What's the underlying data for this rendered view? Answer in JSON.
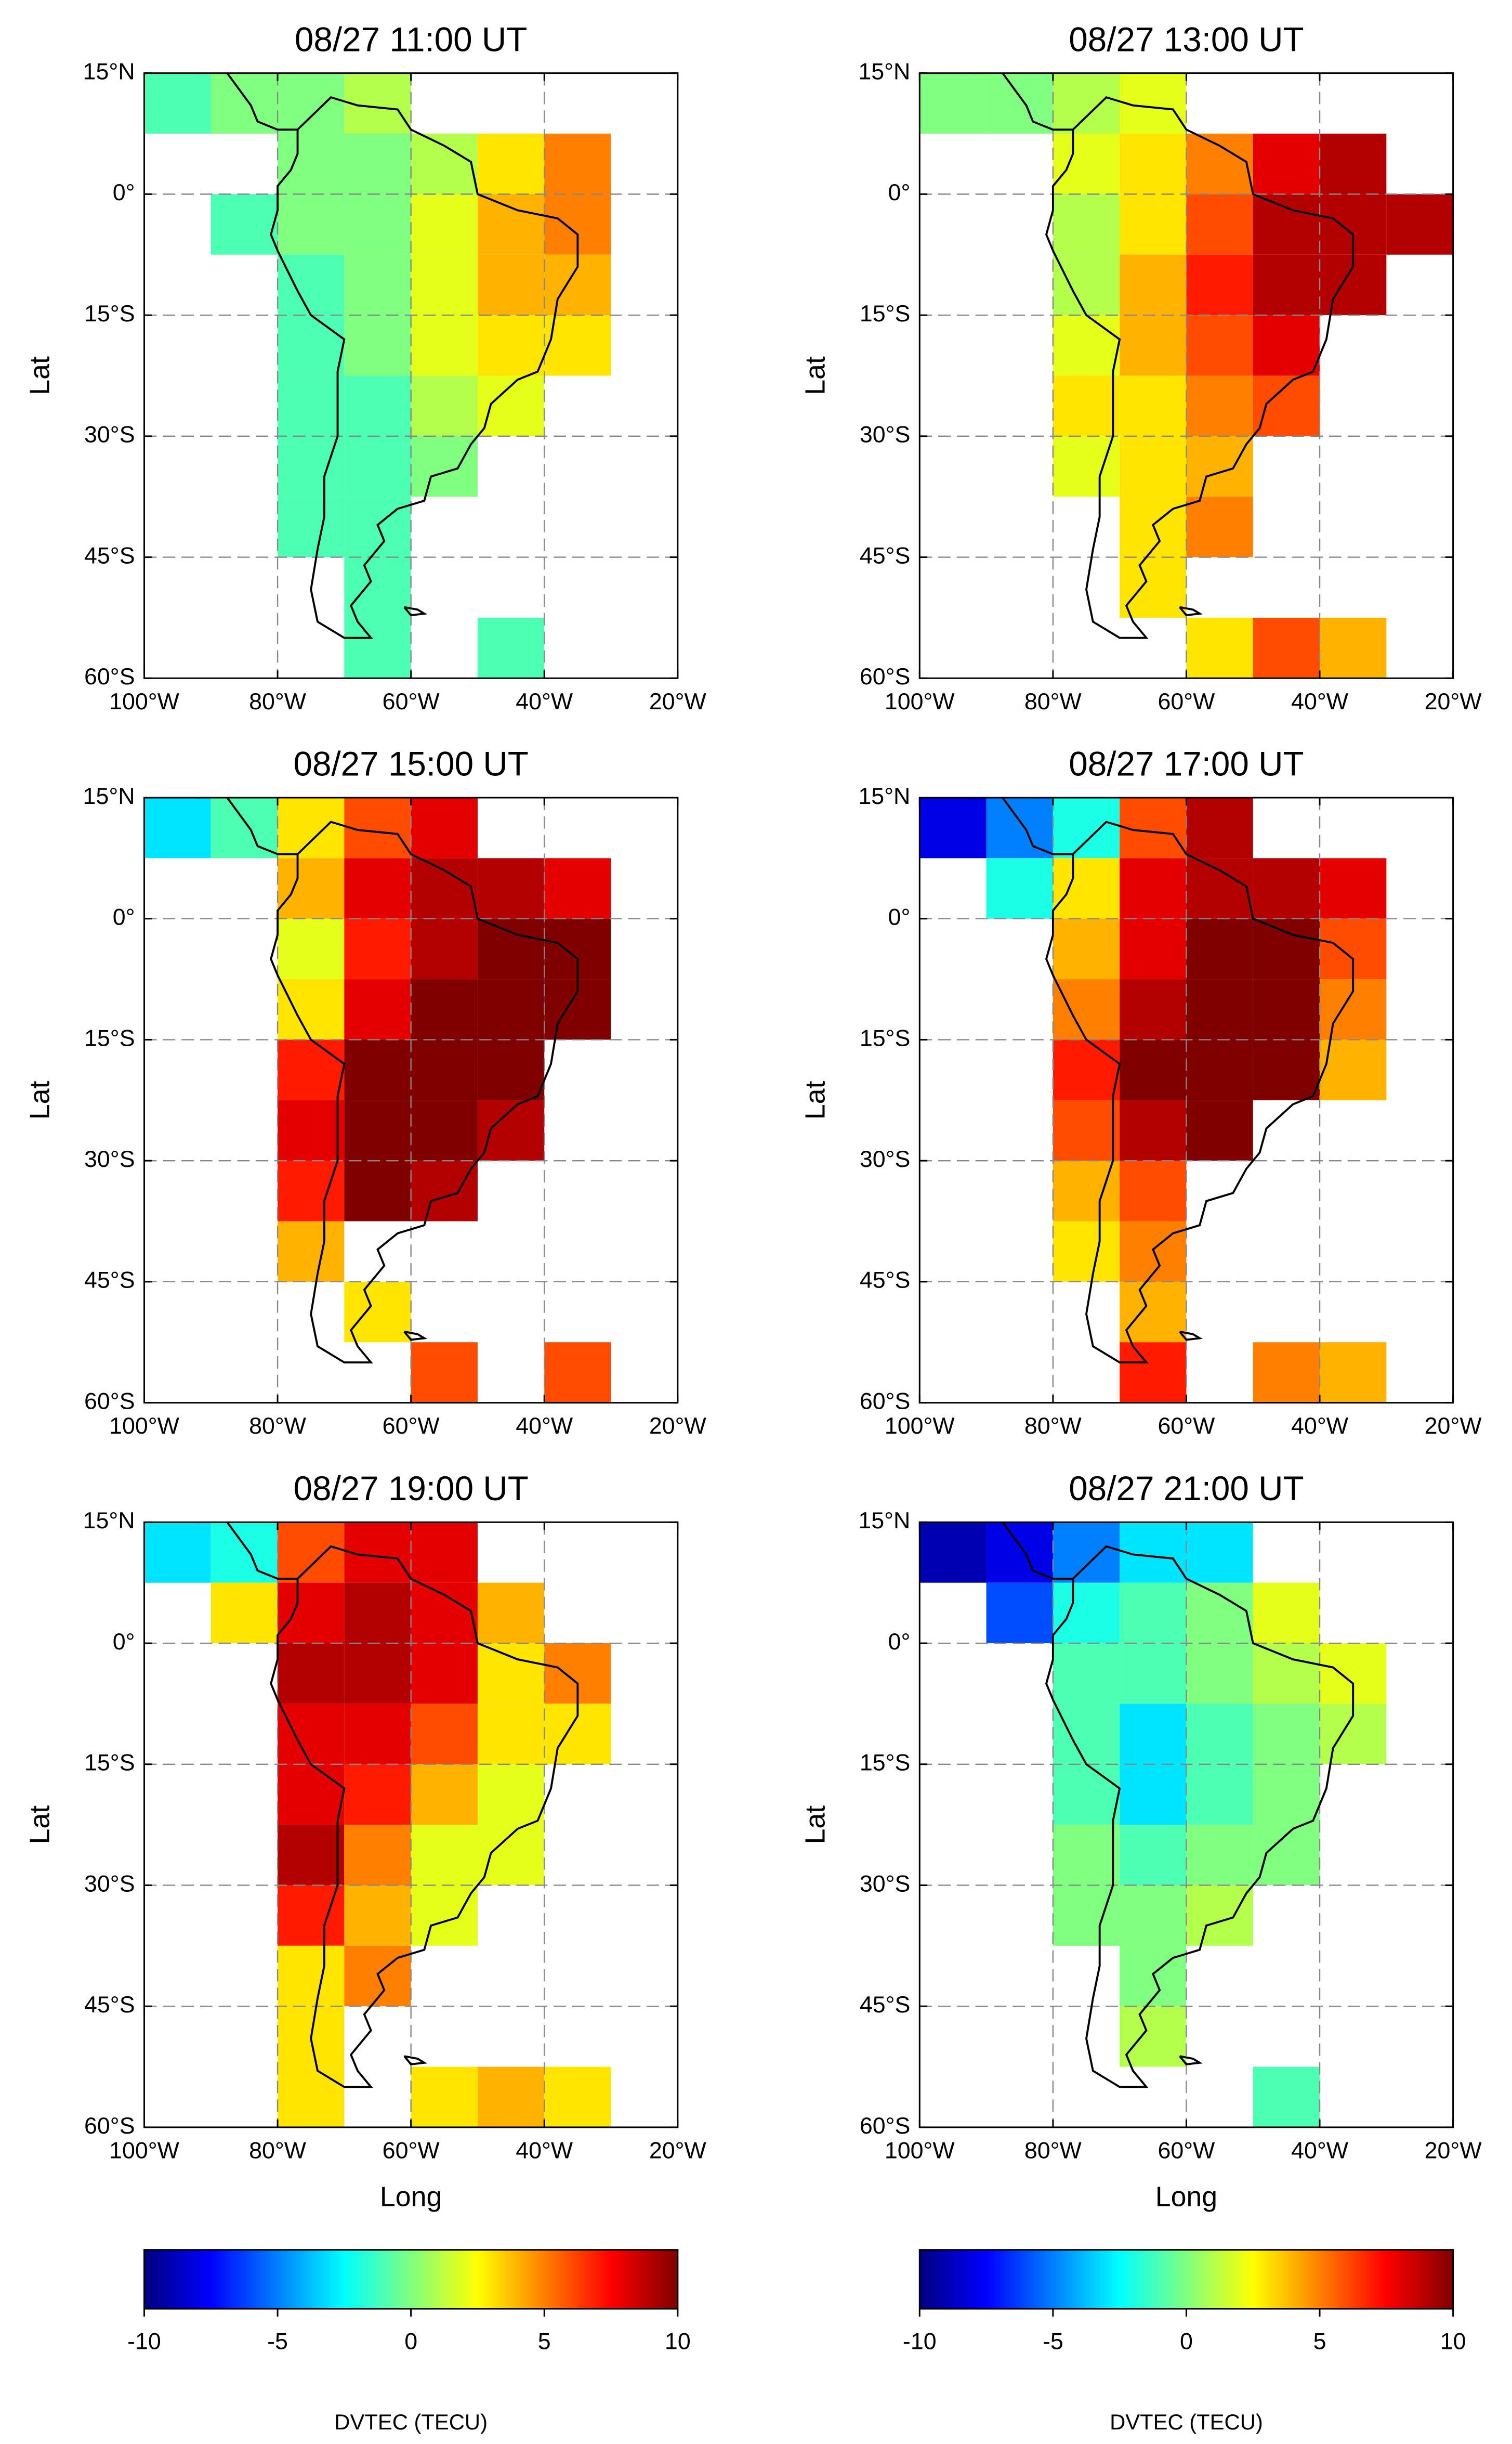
{
  "chart_data": [
    {
      "type": "heatmap",
      "title": "08/27 11:00 UT",
      "ylabel": "Lat",
      "xlim": [
        -100,
        -20
      ],
      "ylim": [
        -60,
        15
      ],
      "xticks": [
        {
          "value": -100,
          "label": "100°W"
        },
        {
          "value": -80,
          "label": "80°W"
        },
        {
          "value": -60,
          "label": "60°W"
        },
        {
          "value": -40,
          "label": "40°W"
        },
        {
          "value": -20,
          "label": "20°W"
        }
      ],
      "yticks": [
        {
          "value": 15,
          "label": "15°N"
        },
        {
          "value": 0,
          "label": "0°"
        },
        {
          "value": -15,
          "label": "15°S"
        },
        {
          "value": -30,
          "label": "30°S"
        },
        {
          "value": -45,
          "label": "45°S"
        },
        {
          "value": -60,
          "label": "60°S"
        }
      ],
      "xbins": [
        -100,
        -90,
        -80,
        -70,
        -60,
        -50,
        -40,
        -30,
        -20
      ],
      "ybins": [
        15,
        7.5,
        0,
        -7.5,
        -15,
        -22.5,
        -30,
        -37.5,
        -45,
        -52.5,
        -60
      ],
      "values": [
        [
          -1,
          0,
          0,
          1,
          null,
          null,
          null,
          null
        ],
        [
          null,
          null,
          0,
          0,
          1,
          3,
          5,
          null
        ],
        [
          null,
          -1,
          0,
          0,
          2,
          4,
          5,
          null
        ],
        [
          null,
          null,
          -1,
          0,
          2,
          4,
          4,
          null
        ],
        [
          null,
          null,
          -1,
          0,
          2,
          3,
          3,
          null
        ],
        [
          null,
          null,
          -1,
          -1,
          1,
          2,
          null,
          null
        ],
        [
          null,
          null,
          -1,
          -1,
          0,
          null,
          null,
          null
        ],
        [
          null,
          null,
          -1,
          -1,
          null,
          null,
          null,
          null
        ],
        [
          null,
          null,
          null,
          -1,
          null,
          null,
          null,
          null
        ],
        [
          null,
          null,
          null,
          -1,
          null,
          -1,
          null,
          null
        ]
      ],
      "grid": true
    },
    {
      "type": "heatmap",
      "title": "08/27 13:00 UT",
      "ylabel": "Lat",
      "xlim": [
        -100,
        -20
      ],
      "ylim": [
        -60,
        15
      ],
      "xticks": [
        {
          "value": -100,
          "label": "100°W"
        },
        {
          "value": -80,
          "label": "80°W"
        },
        {
          "value": -60,
          "label": "60°W"
        },
        {
          "value": -40,
          "label": "40°W"
        },
        {
          "value": -20,
          "label": "20°W"
        }
      ],
      "yticks": [
        {
          "value": 15,
          "label": "15°N"
        },
        {
          "value": 0,
          "label": "0°"
        },
        {
          "value": -15,
          "label": "15°S"
        },
        {
          "value": -30,
          "label": "30°S"
        },
        {
          "value": -45,
          "label": "45°S"
        },
        {
          "value": -60,
          "label": "60°S"
        }
      ],
      "xbins": [
        -100,
        -90,
        -80,
        -70,
        -60,
        -50,
        -40,
        -30,
        -20
      ],
      "ybins": [
        15,
        7.5,
        0,
        -7.5,
        -15,
        -22.5,
        -30,
        -37.5,
        -45,
        -52.5,
        -60
      ],
      "values": [
        [
          0,
          0,
          1,
          2,
          null,
          null,
          null,
          null
        ],
        [
          null,
          null,
          2,
          3,
          5,
          8,
          9,
          null
        ],
        [
          null,
          null,
          1,
          3,
          6,
          9,
          9,
          9
        ],
        [
          null,
          null,
          1,
          4,
          7,
          9,
          9,
          null
        ],
        [
          null,
          null,
          2,
          4,
          6,
          8,
          null,
          null
        ],
        [
          null,
          null,
          3,
          3,
          5,
          6,
          null,
          null
        ],
        [
          null,
          null,
          2,
          3,
          4,
          null,
          null,
          null
        ],
        [
          null,
          null,
          null,
          3,
          5,
          null,
          null,
          null
        ],
        [
          null,
          null,
          null,
          3,
          null,
          null,
          null,
          null
        ],
        [
          null,
          null,
          null,
          null,
          3,
          6,
          4,
          null
        ]
      ],
      "grid": true
    },
    {
      "type": "heatmap",
      "title": "08/27 15:00 UT",
      "ylabel": "Lat",
      "xlim": [
        -100,
        -20
      ],
      "ylim": [
        -60,
        15
      ],
      "xticks": [
        {
          "value": -100,
          "label": "100°W"
        },
        {
          "value": -80,
          "label": "80°W"
        },
        {
          "value": -60,
          "label": "60°W"
        },
        {
          "value": -40,
          "label": "40°W"
        },
        {
          "value": -20,
          "label": "20°W"
        }
      ],
      "yticks": [
        {
          "value": 15,
          "label": "15°N"
        },
        {
          "value": 0,
          "label": "0°"
        },
        {
          "value": -15,
          "label": "15°S"
        },
        {
          "value": -30,
          "label": "30°S"
        },
        {
          "value": -45,
          "label": "45°S"
        },
        {
          "value": -60,
          "label": "60°S"
        }
      ],
      "xbins": [
        -100,
        -90,
        -80,
        -70,
        -60,
        -50,
        -40,
        -30,
        -20
      ],
      "ybins": [
        15,
        7.5,
        0,
        -7.5,
        -15,
        -22.5,
        -30,
        -37.5,
        -45,
        -52.5,
        -60
      ],
      "values": [
        [
          -3,
          -1,
          3,
          6,
          8,
          null,
          null,
          null
        ],
        [
          null,
          null,
          4,
          8,
          9,
          9,
          8,
          null
        ],
        [
          null,
          null,
          2,
          7,
          9,
          10,
          10,
          null
        ],
        [
          null,
          null,
          3,
          8,
          10,
          10,
          10,
          null
        ],
        [
          null,
          null,
          7,
          10,
          10,
          10,
          null,
          null
        ],
        [
          null,
          null,
          8,
          10,
          10,
          9,
          null,
          null
        ],
        [
          null,
          null,
          7,
          10,
          9,
          null,
          null,
          null
        ],
        [
          null,
          null,
          4,
          null,
          null,
          null,
          null,
          null
        ],
        [
          null,
          null,
          null,
          3,
          null,
          null,
          null,
          null
        ],
        [
          null,
          null,
          null,
          null,
          6,
          null,
          6,
          null
        ]
      ],
      "grid": true
    },
    {
      "type": "heatmap",
      "title": "08/27 17:00 UT",
      "ylabel": "Lat",
      "xlim": [
        -100,
        -20
      ],
      "ylim": [
        -60,
        15
      ],
      "xticks": [
        {
          "value": -100,
          "label": "100°W"
        },
        {
          "value": -80,
          "label": "80°W"
        },
        {
          "value": -60,
          "label": "60°W"
        },
        {
          "value": -40,
          "label": "40°W"
        },
        {
          "value": -20,
          "label": "20°W"
        }
      ],
      "yticks": [
        {
          "value": 15,
          "label": "15°N"
        },
        {
          "value": 0,
          "label": "0°"
        },
        {
          "value": -15,
          "label": "15°S"
        },
        {
          "value": -30,
          "label": "30°S"
        },
        {
          "value": -45,
          "label": "45°S"
        },
        {
          "value": -60,
          "label": "60°S"
        }
      ],
      "xbins": [
        -100,
        -90,
        -80,
        -70,
        -60,
        -50,
        -40,
        -30,
        -20
      ],
      "ybins": [
        15,
        7.5,
        0,
        -7.5,
        -15,
        -22.5,
        -30,
        -37.5,
        -45,
        -52.5,
        -60
      ],
      "values": [
        [
          -8,
          -5,
          -2,
          6,
          9,
          null,
          null,
          null
        ],
        [
          null,
          -2,
          3,
          8,
          9,
          9,
          8,
          null
        ],
        [
          null,
          null,
          4,
          8,
          10,
          10,
          6,
          null
        ],
        [
          null,
          null,
          5,
          9,
          10,
          10,
          5,
          null
        ],
        [
          null,
          null,
          7,
          10,
          10,
          10,
          4,
          null
        ],
        [
          null,
          null,
          6,
          9,
          10,
          null,
          null,
          null
        ],
        [
          null,
          null,
          4,
          6,
          null,
          null,
          null,
          null
        ],
        [
          null,
          null,
          3,
          5,
          null,
          null,
          null,
          null
        ],
        [
          null,
          null,
          null,
          4,
          null,
          null,
          null,
          null
        ],
        [
          null,
          null,
          null,
          7,
          null,
          5,
          4,
          null
        ]
      ],
      "grid": true
    },
    {
      "type": "heatmap",
      "title": "08/27 19:00 UT",
      "ylabel": "Lat",
      "xlabel": "Long",
      "xlim": [
        -100,
        -20
      ],
      "ylim": [
        -60,
        15
      ],
      "xticks": [
        {
          "value": -100,
          "label": "100°W"
        },
        {
          "value": -80,
          "label": "80°W"
        },
        {
          "value": -60,
          "label": "60°W"
        },
        {
          "value": -40,
          "label": "40°W"
        },
        {
          "value": -20,
          "label": "20°W"
        }
      ],
      "yticks": [
        {
          "value": 15,
          "label": "15°N"
        },
        {
          "value": 0,
          "label": "0°"
        },
        {
          "value": -15,
          "label": "15°S"
        },
        {
          "value": -30,
          "label": "30°S"
        },
        {
          "value": -45,
          "label": "45°S"
        },
        {
          "value": -60,
          "label": "60°S"
        }
      ],
      "xbins": [
        -100,
        -90,
        -80,
        -70,
        -60,
        -50,
        -40,
        -30,
        -20
      ],
      "ybins": [
        15,
        7.5,
        0,
        -7.5,
        -15,
        -22.5,
        -30,
        -37.5,
        -45,
        -52.5,
        -60
      ],
      "values": [
        [
          -3,
          -2,
          6,
          8,
          8,
          null,
          null,
          null
        ],
        [
          null,
          3,
          8,
          9,
          8,
          4,
          null,
          null
        ],
        [
          null,
          null,
          9,
          9,
          8,
          3,
          5,
          null
        ],
        [
          null,
          null,
          8,
          8,
          6,
          3,
          3,
          null
        ],
        [
          null,
          null,
          8,
          7,
          4,
          2,
          null,
          null
        ],
        [
          null,
          null,
          9,
          5,
          2,
          2,
          null,
          null
        ],
        [
          null,
          null,
          7,
          4,
          2,
          null,
          null,
          null
        ],
        [
          null,
          null,
          3,
          5,
          null,
          null,
          null,
          null
        ],
        [
          null,
          null,
          3,
          null,
          null,
          null,
          null,
          null
        ],
        [
          null,
          null,
          3,
          null,
          3,
          4,
          3,
          null
        ]
      ],
      "grid": true
    },
    {
      "type": "heatmap",
      "title": "08/27 21:00 UT",
      "ylabel": "Lat",
      "xlabel": "Long",
      "xlim": [
        -100,
        -20
      ],
      "ylim": [
        -60,
        15
      ],
      "xticks": [
        {
          "value": -100,
          "label": "100°W"
        },
        {
          "value": -80,
          "label": "80°W"
        },
        {
          "value": -60,
          "label": "60°W"
        },
        {
          "value": -40,
          "label": "40°W"
        },
        {
          "value": -20,
          "label": "20°W"
        }
      ],
      "yticks": [
        {
          "value": 15,
          "label": "15°N"
        },
        {
          "value": 0,
          "label": "0°"
        },
        {
          "value": -15,
          "label": "15°S"
        },
        {
          "value": -30,
          "label": "30°S"
        },
        {
          "value": -45,
          "label": "45°S"
        },
        {
          "value": -60,
          "label": "60°S"
        }
      ],
      "xbins": [
        -100,
        -90,
        -80,
        -70,
        -60,
        -50,
        -40,
        -30,
        -20
      ],
      "ybins": [
        15,
        7.5,
        0,
        -7.5,
        -15,
        -22.5,
        -30,
        -37.5,
        -45,
        -52.5,
        -60
      ],
      "values": [
        [
          -9,
          -8,
          -5,
          -3,
          -3,
          null,
          null,
          null
        ],
        [
          null,
          -6,
          -2,
          -1,
          0,
          2,
          null,
          null
        ],
        [
          null,
          null,
          -1,
          -1,
          0,
          1,
          2,
          null
        ],
        [
          null,
          null,
          -1,
          -3,
          -1,
          0,
          1,
          null
        ],
        [
          null,
          null,
          -1,
          -3,
          -1,
          0,
          null,
          null
        ],
        [
          null,
          null,
          0,
          -1,
          0,
          0,
          null,
          null
        ],
        [
          null,
          null,
          0,
          0,
          1,
          null,
          null,
          null
        ],
        [
          null,
          null,
          null,
          0,
          null,
          null,
          null,
          null
        ],
        [
          null,
          null,
          null,
          1,
          null,
          null,
          null,
          null
        ],
        [
          null,
          null,
          null,
          null,
          null,
          -1,
          null,
          null
        ]
      ],
      "grid": true
    }
  ],
  "colorbars": [
    {
      "label": "DVTEC (TECU)",
      "clim": [
        -10,
        10
      ],
      "ticks": [
        -10,
        -5,
        0,
        5,
        10
      ],
      "colormap": "jet"
    },
    {
      "label": "DVTEC (TECU)",
      "clim": [
        -10,
        10
      ],
      "ticks": [
        -10,
        -5,
        0,
        5,
        10
      ],
      "colormap": "jet"
    }
  ]
}
